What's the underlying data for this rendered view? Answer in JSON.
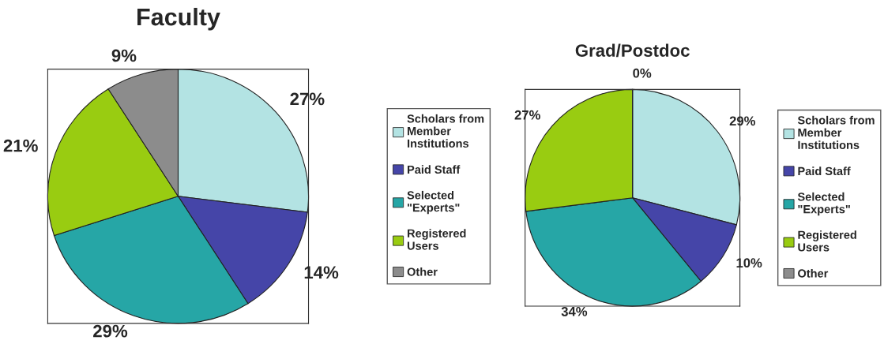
{
  "chart_data": [
    {
      "type": "pie",
      "title": "Faculty",
      "categories": [
        "Scholars from\nMember\nInstitutions",
        "Paid Staff",
        "Selected\n\"Experts\"",
        "Registered\nUsers",
        "Other"
      ],
      "values": [
        27,
        14,
        29,
        21,
        9
      ],
      "colors": [
        "#b3e3e3",
        "#4545a8",
        "#26a6a6",
        "#99cc11",
        "#8c8c8c"
      ],
      "value_labels": [
        "27%",
        "14%",
        "29%",
        "21%",
        "9%"
      ],
      "legend": "right"
    },
    {
      "type": "pie",
      "title": "Grad/Postdoc",
      "categories": [
        "Scholars from\nMember\nInstitutions",
        "Paid Staff",
        "Selected\n\"Experts\"",
        "Registered\nUsers",
        "Other"
      ],
      "values": [
        29,
        10,
        34,
        27,
        0
      ],
      "colors": [
        "#b3e3e3",
        "#4545a8",
        "#26a6a6",
        "#99cc11",
        "#8c8c8c"
      ],
      "value_labels": [
        "29%",
        "10%",
        "34%",
        "27%",
        "0%"
      ],
      "legend": "right"
    }
  ]
}
